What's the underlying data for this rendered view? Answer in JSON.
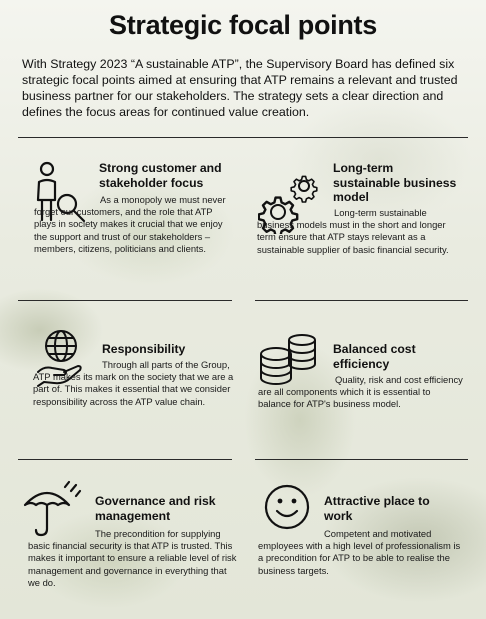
{
  "title": "Strategic focal points",
  "intro": "With Strategy 2023 “A sustainable ATP”, the Supervisory Board has defined six strategic focal points aimed at ensuring that ATP remains a relevant and trusted business partner for our stakeholders. The strategy sets a clear direction and defines the focus areas for continued value creation.",
  "focal_points": [
    {
      "heading": "Strong customer and stakeholder focus",
      "body": "As a monopoly we must never forget our customers, and the role that ATP plays in society makes it crucial that we enjoy the support and trust of our stakeholders – members, citizens, politicians and clients.",
      "icon": "person-magnifier-icon"
    },
    {
      "heading": "Long-term sustainable business model",
      "body": "Long-term sustainable business models must in the short and longer term ensure that ATP stays relevant as a sustainable supplier of basic financial security.",
      "icon": "gears-icon"
    },
    {
      "heading": "Responsibility",
      "body": "Through all parts of the Group, ATP makes its mark on the society that we are a part of. This makes it essential that we consider responsibility across the ATP value chain.",
      "icon": "globe-hand-icon"
    },
    {
      "heading": "Balanced cost efficiency",
      "body": "Quality, risk and cost efficiency are all components which it is essential to balance for ATP's business model.",
      "icon": "coin-stacks-icon"
    },
    {
      "heading": "Governance and risk management",
      "body": "The precondition for supplying basic financial security is that ATP is trusted. This makes it important to ensure a reliable level of risk management and governance in everything that we do.",
      "icon": "umbrella-rain-icon"
    },
    {
      "heading": "Attractive place to work",
      "body": "Competent and motivated employees with a high level of professionalism is a precondition for ATP to be able to realise the business targets.",
      "icon": "smiley-face-icon"
    }
  ]
}
